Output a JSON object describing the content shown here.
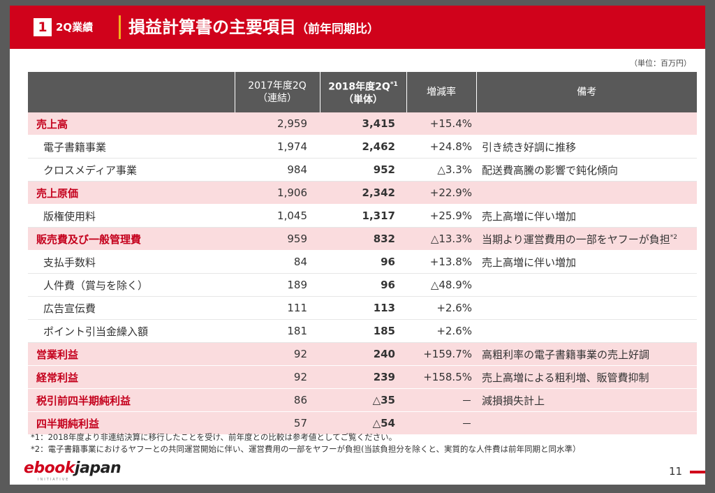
{
  "header": {
    "section_number": "1",
    "section_label": "2Q業績",
    "title": "損益計算書の主要項目",
    "title_suffix": "（前年同期比）",
    "accent": "#d0021b"
  },
  "unit_label": "（単位：百万円）",
  "table": {
    "headers": {
      "item": "",
      "y2017_line1": "2017年度2Q",
      "y2017_line2": "（連結）",
      "y2018_line1": "2018年度2Q",
      "y2018_sup": "*1",
      "y2018_line2": "（単体）",
      "change": "増減率",
      "note": "備考"
    },
    "rows": [
      {
        "kind": "major",
        "item": "売上高",
        "y2017": "2,959",
        "y2018": "3,415",
        "change": "+15.4%",
        "note": "",
        "note_sup": ""
      },
      {
        "kind": "minor",
        "item": "電子書籍事業",
        "y2017": "1,974",
        "y2018": "2,462",
        "change": "+24.8%",
        "note": "引き続き好調に推移",
        "note_sup": ""
      },
      {
        "kind": "minor",
        "item": "クロスメディア事業",
        "y2017": "984",
        "y2018": "952",
        "change": "△3.3%",
        "note": "配送費高騰の影響で鈍化傾向",
        "note_sup": ""
      },
      {
        "kind": "major",
        "item": "売上原価",
        "y2017": "1,906",
        "y2018": "2,342",
        "change": "+22.9%",
        "note": "",
        "note_sup": ""
      },
      {
        "kind": "minor",
        "item": "版権使用料",
        "y2017": "1,045",
        "y2018": "1,317",
        "change": "+25.9%",
        "note": "売上高増に伴い増加",
        "note_sup": ""
      },
      {
        "kind": "major",
        "item": "販売費及び一般管理費",
        "y2017": "959",
        "y2018": "832",
        "change": "△13.3%",
        "note": "当期より運営費用の一部をヤフーが負担",
        "note_sup": "*2"
      },
      {
        "kind": "minor",
        "item": "支払手数料",
        "y2017": "84",
        "y2018": "96",
        "change": "+13.8%",
        "note": "売上高増に伴い増加",
        "note_sup": ""
      },
      {
        "kind": "minor",
        "item": "人件費（賞与を除く）",
        "y2017": "189",
        "y2018": "96",
        "change": "△48.9%",
        "note": "",
        "note_sup": ""
      },
      {
        "kind": "minor",
        "item": "広告宣伝費",
        "y2017": "111",
        "y2018": "113",
        "change": "+2.6%",
        "note": "",
        "note_sup": ""
      },
      {
        "kind": "minor",
        "item": "ポイント引当金繰入額",
        "y2017": "181",
        "y2018": "185",
        "change": "+2.6%",
        "note": "",
        "note_sup": ""
      },
      {
        "kind": "major",
        "item": "営業利益",
        "y2017": "92",
        "y2018": "240",
        "change": "+159.7%",
        "note": "高粗利率の電子書籍事業の売上好調",
        "note_sup": ""
      },
      {
        "kind": "major",
        "item": "経常利益",
        "y2017": "92",
        "y2018": "239",
        "change": "+158.5%",
        "note": "売上高増による粗利増、販管費抑制",
        "note_sup": ""
      },
      {
        "kind": "major",
        "item": "税引前四半期純利益",
        "y2017": "86",
        "y2018": "△35",
        "change": "－",
        "note": "減損損失計上",
        "note_sup": ""
      },
      {
        "kind": "major",
        "item": "四半期純利益",
        "y2017": "57",
        "y2018": "△54",
        "change": "－",
        "note": "",
        "note_sup": ""
      }
    ]
  },
  "footnotes": [
    "*1：2018年度より非連結決算に移行したことを受け、前年度との比較は参考値としてご覧ください。",
    "*2：電子書籍事業におけるヤフーとの共同運営開始に伴い、運営費用の一部をヤフーが負担(当該負担分を除くと、実質的な人件費は前年同期と同水準）"
  ],
  "footer": {
    "logo_part1": "ebook",
    "logo_part2": "japan",
    "logo_sub": "INITIATIVE",
    "page_number": "11"
  }
}
